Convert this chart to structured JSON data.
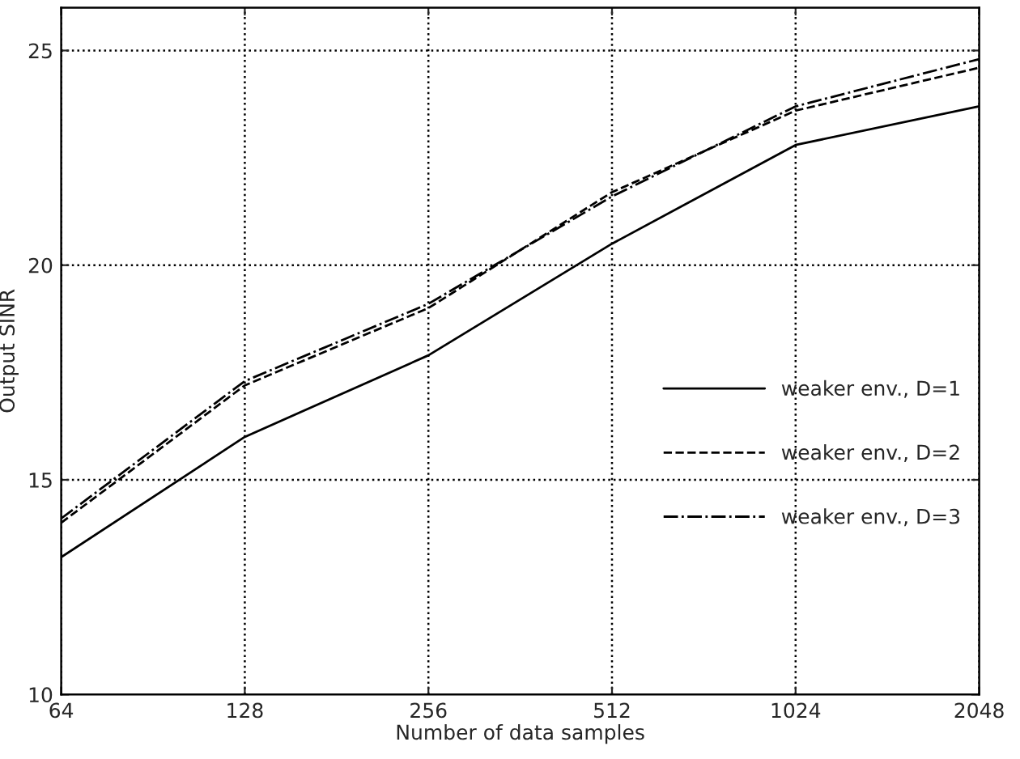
{
  "chart_data": {
    "type": "line",
    "xlabel": "Number of data samples",
    "ylabel": "Output SINR",
    "x": [
      64,
      128,
      256,
      512,
      1024,
      2048
    ],
    "log": "x",
    "xlim": [
      64,
      2048
    ],
    "xticks": [
      64,
      128,
      256,
      512,
      1024,
      2048
    ],
    "ylim": [
      10,
      26
    ],
    "yticks": [
      10,
      15,
      20,
      25
    ],
    "grid": true,
    "legend": "right",
    "marker": "none",
    "series": [
      {
        "name": "weaker env., D=1",
        "color": "#000000",
        "line_style": "solid",
        "values": [
          13.2,
          16.0,
          17.9,
          20.5,
          22.8,
          23.7
        ]
      },
      {
        "name": "weaker env., D=2",
        "color": "#000000",
        "line_style": "dashed",
        "values": [
          14.0,
          17.2,
          19.0,
          21.7,
          23.6,
          24.6
        ]
      },
      {
        "name": "weaker env., D=3",
        "color": "#000000",
        "line_style": "dashdot",
        "values": [
          14.1,
          17.3,
          19.1,
          21.6,
          23.7,
          24.8
        ]
      }
    ]
  }
}
